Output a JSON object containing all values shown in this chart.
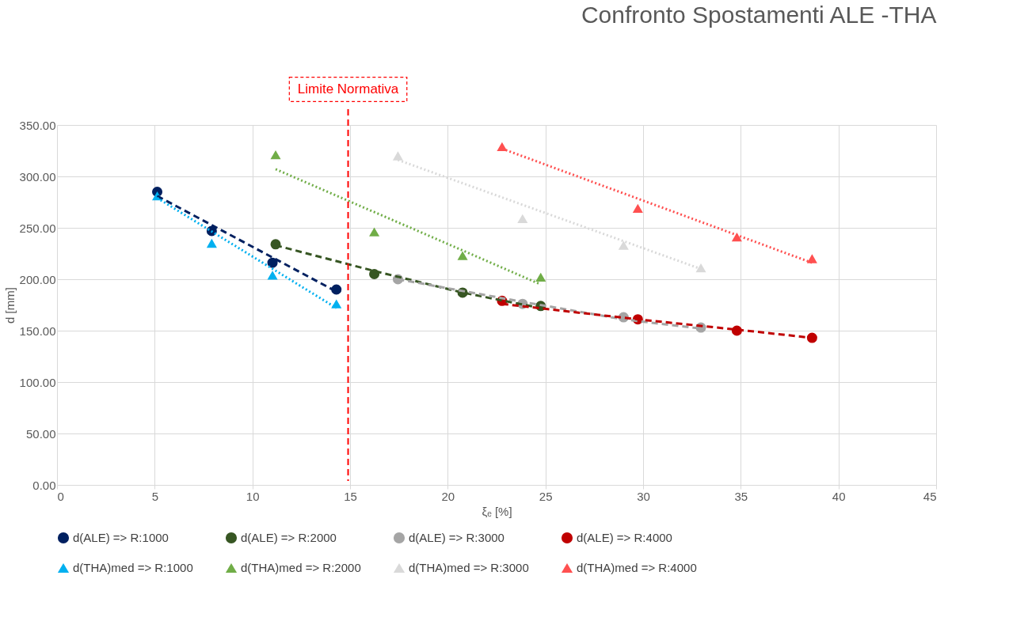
{
  "chart_data": {
    "type": "scatter",
    "title": "Confronto Spostamenti ALE -THA",
    "xlabel": "ξₑ [%]",
    "ylabel": "d [mm]",
    "xlim": [
      0,
      45
    ],
    "xticks": [
      0,
      5,
      10,
      15,
      20,
      25,
      30,
      35,
      40,
      45
    ],
    "ylim": [
      0,
      350
    ],
    "yticks": [
      {
        "value": 0,
        "label": "0.00"
      },
      {
        "value": 50,
        "label": "50.00"
      },
      {
        "value": 100,
        "label": "100.00"
      },
      {
        "value": 150,
        "label": "150.00"
      },
      {
        "value": 200,
        "label": "200.00"
      },
      {
        "value": 250,
        "label": "250.00"
      },
      {
        "value": 300,
        "label": "300.00"
      },
      {
        "value": 350,
        "label": "350.00"
      }
    ],
    "grid": true,
    "legend": "bottom",
    "ref_lines": [
      {
        "axis": "x",
        "value": 14.9,
        "label": "Limite Normativa",
        "color": "#ff0000",
        "line_style": "dashed"
      }
    ],
    "series": [
      {
        "name": "d(ALE) => R:1000",
        "color": "#002060",
        "marker": "circle",
        "x": [
          5.13,
          7.92,
          11.03,
          14.3
        ],
        "values": [
          285,
          247,
          216,
          190
        ]
      },
      {
        "name": "d(ALE) => R:2000",
        "color": "#375623",
        "marker": "circle",
        "x": [
          11.19,
          16.24,
          20.76,
          24.76
        ],
        "values": [
          234,
          205,
          187,
          174
        ]
      },
      {
        "name": "d(ALE) => R:3000",
        "color": "#a5a5a5",
        "marker": "circle",
        "x": [
          17.45,
          23.83,
          29.0,
          32.96
        ],
        "values": [
          200,
          176,
          163,
          153
        ]
      },
      {
        "name": "d(ALE) => R:4000",
        "color": "#c00000",
        "marker": "circle",
        "x": [
          22.78,
          29.73,
          34.8,
          38.65
        ],
        "values": [
          179,
          161,
          150,
          143
        ]
      },
      {
        "name": "d(THA)med => R:1000",
        "color": "#00b0f0",
        "marker": "triangle",
        "x": [
          5.13,
          7.92,
          11.03,
          14.3
        ],
        "values": [
          281,
          235,
          204,
          176
        ]
      },
      {
        "name": "d(THA)med => R:2000",
        "color": "#70ad47",
        "marker": "triangle",
        "x": [
          11.19,
          16.24,
          20.76,
          24.76
        ],
        "values": [
          321,
          246,
          223,
          202
        ]
      },
      {
        "name": "d(THA)med => R:3000",
        "color": "#d9d9d9",
        "marker": "triangle",
        "x": [
          17.45,
          23.83,
          29.0,
          32.96
        ],
        "values": [
          320,
          259,
          233,
          211
        ]
      },
      {
        "name": "d(THA)med => R:4000",
        "color": "#ff5050",
        "marker": "triangle",
        "x": [
          22.78,
          29.73,
          34.8,
          38.65
        ],
        "values": [
          329,
          269,
          241,
          220
        ]
      },
      {
        "type": "line",
        "color": "#002060",
        "line_style": "dashed",
        "x": [
          5.13,
          14.3
        ],
        "values": [
          281,
          188
        ]
      },
      {
        "type": "line",
        "color": "#00b0f0",
        "line_style": "dotted",
        "x": [
          5.13,
          14.3
        ],
        "values": [
          279,
          172
        ]
      },
      {
        "type": "line",
        "color": "#375623",
        "line_style": "dashed",
        "x": [
          11.19,
          16.24,
          20.76,
          24.76
        ],
        "values": [
          233,
          208,
          187,
          172
        ]
      },
      {
        "type": "line",
        "color": "#70ad47",
        "line_style": "dotted",
        "x": [
          11.19,
          24.76
        ],
        "values": [
          307,
          195
        ]
      },
      {
        "type": "line",
        "color": "#a5a5a5",
        "line_style": "dashed",
        "x": [
          17.45,
          23.83,
          29.0,
          32.96
        ],
        "values": [
          200,
          178,
          161,
          152
        ]
      },
      {
        "type": "line",
        "color": "#d9d9d9",
        "line_style": "dotted",
        "x": [
          17.45,
          32.96
        ],
        "values": [
          316,
          210
        ]
      },
      {
        "type": "line",
        "color": "#c00000",
        "line_style": "dashed",
        "x": [
          22.78,
          29.73,
          34.8,
          38.65
        ],
        "values": [
          176,
          161,
          151,
          143
        ]
      },
      {
        "type": "line",
        "color": "#ff5050",
        "line_style": "dotted",
        "x": [
          22.78,
          38.65
        ],
        "values": [
          327,
          216
        ]
      }
    ]
  }
}
